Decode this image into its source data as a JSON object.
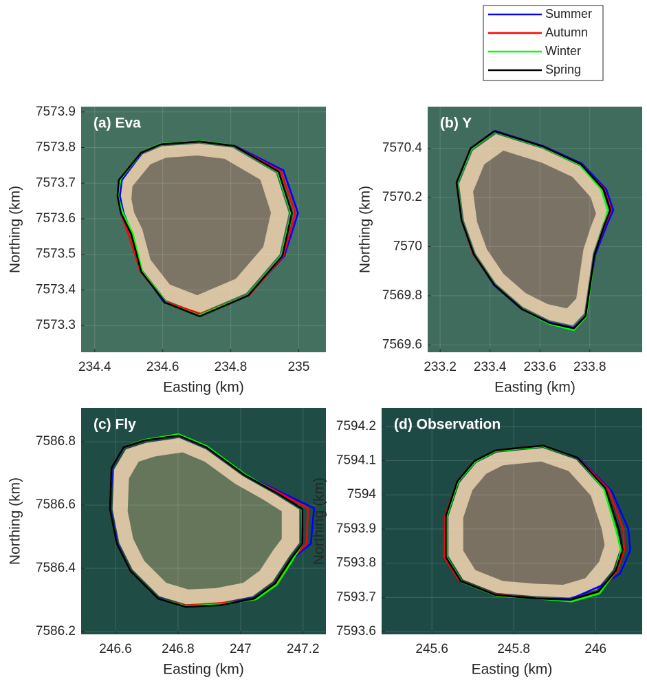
{
  "chart_data": [
    {
      "type": "line",
      "title": "(a) Eva",
      "xlabel": "Easting (km)",
      "ylabel": "Northing (km)",
      "xlim": [
        234.36,
        235.08
      ],
      "ylim": [
        7573.225,
        7573.915
      ],
      "xticks": [
        234.4,
        234.6,
        234.8,
        235
      ],
      "yticks": [
        7573.3,
        7573.4,
        7573.5,
        7573.6,
        7573.7,
        7573.8,
        7573.9
      ],
      "grid": true,
      "series": [
        {
          "name": "Summer",
          "color": "#0000ff",
          "x": [
            234.594,
            234.709,
            234.812,
            234.955,
            234.998,
            234.958,
            234.853,
            234.712,
            234.605,
            234.54,
            234.51,
            234.485,
            234.474,
            234.48,
            234.54,
            234.594
          ],
          "y": [
            7573.809,
            7573.817,
            7573.805,
            7573.736,
            7573.616,
            7573.496,
            7573.386,
            7573.331,
            7573.364,
            7573.451,
            7573.558,
            7573.616,
            7573.664,
            7573.709,
            7573.786,
            7573.809
          ]
        },
        {
          "name": "Autumn",
          "color": "#ff0000",
          "x": [
            234.594,
            234.709,
            234.81,
            234.948,
            234.99,
            234.955,
            234.855,
            234.712,
            234.608,
            234.535,
            234.5,
            234.478,
            234.47,
            234.474,
            234.538,
            234.594
          ],
          "y": [
            7573.809,
            7573.817,
            7573.805,
            7573.733,
            7573.616,
            7573.496,
            7573.386,
            7573.333,
            7573.366,
            7573.451,
            7573.556,
            7573.612,
            7573.664,
            7573.709,
            7573.786,
            7573.809
          ]
        },
        {
          "name": "Winter",
          "color": "#00ff00",
          "x": [
            234.592,
            234.711,
            234.808,
            234.938,
            234.978,
            234.95,
            234.849,
            234.707,
            234.612,
            234.54,
            234.512,
            234.482,
            234.468,
            234.476,
            234.54,
            234.592
          ],
          "y": [
            7573.81,
            7573.818,
            7573.806,
            7573.732,
            7573.616,
            7573.497,
            7573.384,
            7573.329,
            7573.362,
            7573.451,
            7573.558,
            7573.618,
            7573.664,
            7573.712,
            7573.788,
            7573.81
          ]
        },
        {
          "name": "Spring",
          "color": "#000000",
          "x": [
            234.594,
            234.709,
            234.81,
            234.941,
            234.98,
            234.952,
            234.851,
            234.709,
            234.608,
            234.537,
            234.507,
            234.477,
            234.467,
            234.471,
            234.537,
            234.594
          ],
          "y": [
            7573.809,
            7573.817,
            7573.805,
            7573.732,
            7573.616,
            7573.496,
            7573.384,
            7573.326,
            7573.364,
            7573.451,
            7573.558,
            7573.616,
            7573.664,
            7573.709,
            7573.786,
            7573.809
          ]
        }
      ]
    },
    {
      "type": "line",
      "title": "(b) Y",
      "xlabel": "Easting (km)",
      "ylabel": "Northing (km)",
      "xlim": [
        233.15,
        234.01
      ],
      "ylim": [
        7569.57,
        7570.57
      ],
      "xticks": [
        233.2,
        233.4,
        233.6,
        233.8
      ],
      "yticks": [
        7569.6,
        7569.8,
        7570,
        7570.2,
        7570.4
      ],
      "grid": true,
      "series": [
        {
          "name": "Summer",
          "color": "#0000ff",
          "x": [
            233.418,
            233.612,
            233.768,
            233.866,
            233.894,
            233.87,
            233.822,
            233.799,
            233.783,
            233.736,
            233.639,
            233.527,
            233.416,
            233.335,
            233.286,
            233.266,
            233.322,
            233.418
          ],
          "y": [
            7570.472,
            7570.41,
            7570.338,
            7570.233,
            7570.149,
            7570.093,
            7569.968,
            7569.829,
            7569.717,
            7569.669,
            7569.691,
            7569.745,
            7569.843,
            7569.968,
            7570.107,
            7570.261,
            7570.4,
            7570.472
          ]
        },
        {
          "name": "Autumn",
          "color": "#ff0000",
          "x": [
            233.418,
            233.612,
            233.764,
            233.858,
            233.886,
            233.862,
            233.819,
            233.799,
            233.783,
            233.736,
            233.639,
            233.529,
            233.418,
            233.333,
            233.286,
            233.266,
            233.322,
            233.418
          ],
          "y": [
            7570.47,
            7570.408,
            7570.336,
            7570.233,
            7570.149,
            7570.093,
            7569.968,
            7569.829,
            7569.717,
            7569.665,
            7569.687,
            7569.745,
            7569.843,
            7569.968,
            7570.107,
            7570.261,
            7570.4,
            7570.47
          ]
        },
        {
          "name": "Winter",
          "color": "#00ff00",
          "x": [
            233.418,
            233.612,
            233.76,
            233.846,
            233.872,
            233.858,
            233.819,
            233.801,
            233.785,
            233.736,
            233.639,
            233.529,
            233.418,
            233.335,
            233.286,
            233.268,
            233.324,
            233.418
          ],
          "y": [
            7570.468,
            7570.406,
            7570.334,
            7570.233,
            7570.149,
            7570.093,
            7569.968,
            7569.829,
            7569.715,
            7569.66,
            7569.685,
            7569.745,
            7569.843,
            7569.968,
            7570.107,
            7570.261,
            7570.398,
            7570.468
          ]
        },
        {
          "name": "Spring",
          "color": "#000000",
          "x": [
            233.418,
            233.612,
            233.764,
            233.855,
            233.882,
            233.86,
            233.819,
            233.799,
            233.783,
            233.736,
            233.639,
            233.529,
            233.418,
            233.335,
            233.286,
            233.266,
            233.322,
            233.418
          ],
          "y": [
            7570.47,
            7570.408,
            7570.336,
            7570.233,
            7570.149,
            7570.093,
            7569.968,
            7569.829,
            7569.717,
            7569.667,
            7569.689,
            7569.745,
            7569.843,
            7569.968,
            7570.107,
            7570.261,
            7570.4,
            7570.47
          ]
        }
      ]
    },
    {
      "type": "line",
      "title": "(c) Fly",
      "xlabel": "Easting (km)",
      "ylabel": "Northing (km)",
      "xlim": [
        246.49,
        247.273
      ],
      "ylim": [
        7586.191,
        7586.907
      ],
      "xticks": [
        246.6,
        246.8,
        247,
        247.2
      ],
      "yticks": [
        7586.2,
        7586.4,
        7586.6,
        7586.8
      ],
      "grid": true,
      "series": [
        {
          "name": "Summer",
          "color": "#0000ff",
          "x": [
            246.692,
            246.802,
            246.89,
            247.011,
            247.13,
            247.235,
            247.225,
            247.172,
            247.112,
            247.044,
            246.934,
            246.824,
            246.736,
            246.648,
            246.606,
            246.584,
            246.589,
            246.626,
            246.692
          ],
          "y": [
            7586.804,
            7586.82,
            7586.783,
            7586.696,
            7586.64,
            7586.59,
            7586.478,
            7586.435,
            7586.352,
            7586.306,
            7586.286,
            7586.28,
            7586.306,
            7586.391,
            7586.478,
            7586.587,
            7586.717,
            7586.783,
            7586.804
          ]
        },
        {
          "name": "Autumn",
          "color": "#ff0000",
          "x": [
            246.692,
            246.802,
            246.89,
            247.011,
            247.126,
            247.215,
            247.212,
            247.17,
            247.114,
            247.046,
            246.934,
            246.824,
            246.736,
            246.648,
            246.604,
            246.582,
            246.587,
            246.626,
            246.692
          ],
          "y": [
            7586.804,
            7586.82,
            7586.783,
            7586.696,
            7586.638,
            7586.59,
            7586.478,
            7586.435,
            7586.35,
            7586.3,
            7586.29,
            7586.282,
            7586.304,
            7586.391,
            7586.478,
            7586.587,
            7586.717,
            7586.783,
            7586.804
          ]
        },
        {
          "name": "Winter",
          "color": "#00ff00",
          "x": [
            246.692,
            246.802,
            246.892,
            247.013,
            247.121,
            247.196,
            247.198,
            247.17,
            247.116,
            247.05,
            246.936,
            246.824,
            246.736,
            246.648,
            246.604,
            246.582,
            246.587,
            246.626,
            246.692
          ],
          "y": [
            7586.806,
            7586.824,
            7586.786,
            7586.698,
            7586.635,
            7586.587,
            7586.478,
            7586.432,
            7586.348,
            7586.302,
            7586.286,
            7586.28,
            7586.304,
            7586.391,
            7586.478,
            7586.587,
            7586.717,
            7586.783,
            7586.806
          ]
        },
        {
          "name": "Spring",
          "color": "#000000",
          "x": [
            246.692,
            246.802,
            246.89,
            247.011,
            247.121,
            247.198,
            247.198,
            247.165,
            247.11,
            247.044,
            246.934,
            246.824,
            246.736,
            246.648,
            246.604,
            246.582,
            246.587,
            246.626,
            246.692
          ],
          "y": [
            7586.804,
            7586.82,
            7586.783,
            7586.696,
            7586.635,
            7586.587,
            7586.478,
            7586.435,
            7586.352,
            7586.304,
            7586.283,
            7586.278,
            7586.304,
            7586.391,
            7586.478,
            7586.587,
            7586.717,
            7586.783,
            7586.804
          ]
        }
      ]
    },
    {
      "type": "line",
      "title": "(d) Observation",
      "xlabel": "Easting (km)",
      "ylabel": "Northing (km)",
      "xlim": [
        245.477,
        246.114
      ],
      "ylim": [
        7593.592,
        7594.254
      ],
      "xticks": [
        245.6,
        245.8,
        246
      ],
      "yticks": [
        7593.6,
        7593.7,
        7593.8,
        7593.9,
        7594,
        7594.1,
        7594.2
      ],
      "grid": true,
      "series": [
        {
          "name": "Summer",
          "color": "#0000ff",
          "x": [
            245.755,
            245.872,
            245.96,
            246.04,
            246.08,
            246.085,
            246.06,
            246.015,
            245.939,
            245.855,
            245.755,
            245.671,
            245.634,
            245.634,
            245.662,
            245.704,
            245.755
          ],
          "y": [
            7594.13,
            7594.144,
            7594.107,
            7594.01,
            7593.9,
            7593.838,
            7593.77,
            7593.735,
            7593.695,
            7593.697,
            7593.707,
            7593.747,
            7593.818,
            7593.938,
            7594.039,
            7594.099,
            7594.13
          ]
        },
        {
          "name": "Autumn",
          "color": "#ff0000",
          "x": [
            245.755,
            245.872,
            245.958,
            246.032,
            246.068,
            246.07,
            246.052,
            246.009,
            245.939,
            245.855,
            245.753,
            245.667,
            245.63,
            245.632,
            245.662,
            245.704,
            245.755
          ],
          "y": [
            7594.13,
            7594.144,
            7594.108,
            7594.015,
            7593.898,
            7593.838,
            7593.775,
            7593.715,
            7593.69,
            7593.697,
            7593.709,
            7593.749,
            7593.818,
            7593.938,
            7594.039,
            7594.099,
            7594.13
          ]
        },
        {
          "name": "Winter",
          "color": "#00ff00",
          "x": [
            245.755,
            245.872,
            245.956,
            246.02,
            246.05,
            246.062,
            246.049,
            246.01,
            245.942,
            245.855,
            245.757,
            245.673,
            245.636,
            245.636,
            245.664,
            245.706,
            245.755
          ],
          "y": [
            7594.128,
            7594.142,
            7594.109,
            7594.019,
            7593.898,
            7593.838,
            7593.777,
            7593.712,
            7593.688,
            7593.697,
            7593.705,
            7593.745,
            7593.818,
            7593.938,
            7594.039,
            7594.097,
            7594.128
          ]
        },
        {
          "name": "Spring",
          "color": "#000000",
          "x": [
            245.755,
            245.872,
            245.956,
            246.024,
            246.057,
            246.066,
            246.049,
            246.007,
            245.939,
            245.855,
            245.755,
            245.671,
            245.634,
            245.634,
            245.662,
            245.704,
            245.755
          ],
          "y": [
            7594.13,
            7594.144,
            7594.109,
            7594.019,
            7593.898,
            7593.838,
            7593.777,
            7593.717,
            7593.693,
            7593.697,
            7593.707,
            7593.747,
            7593.818,
            7593.938,
            7594.039,
            7594.099,
            7594.13
          ]
        }
      ]
    }
  ]
}
